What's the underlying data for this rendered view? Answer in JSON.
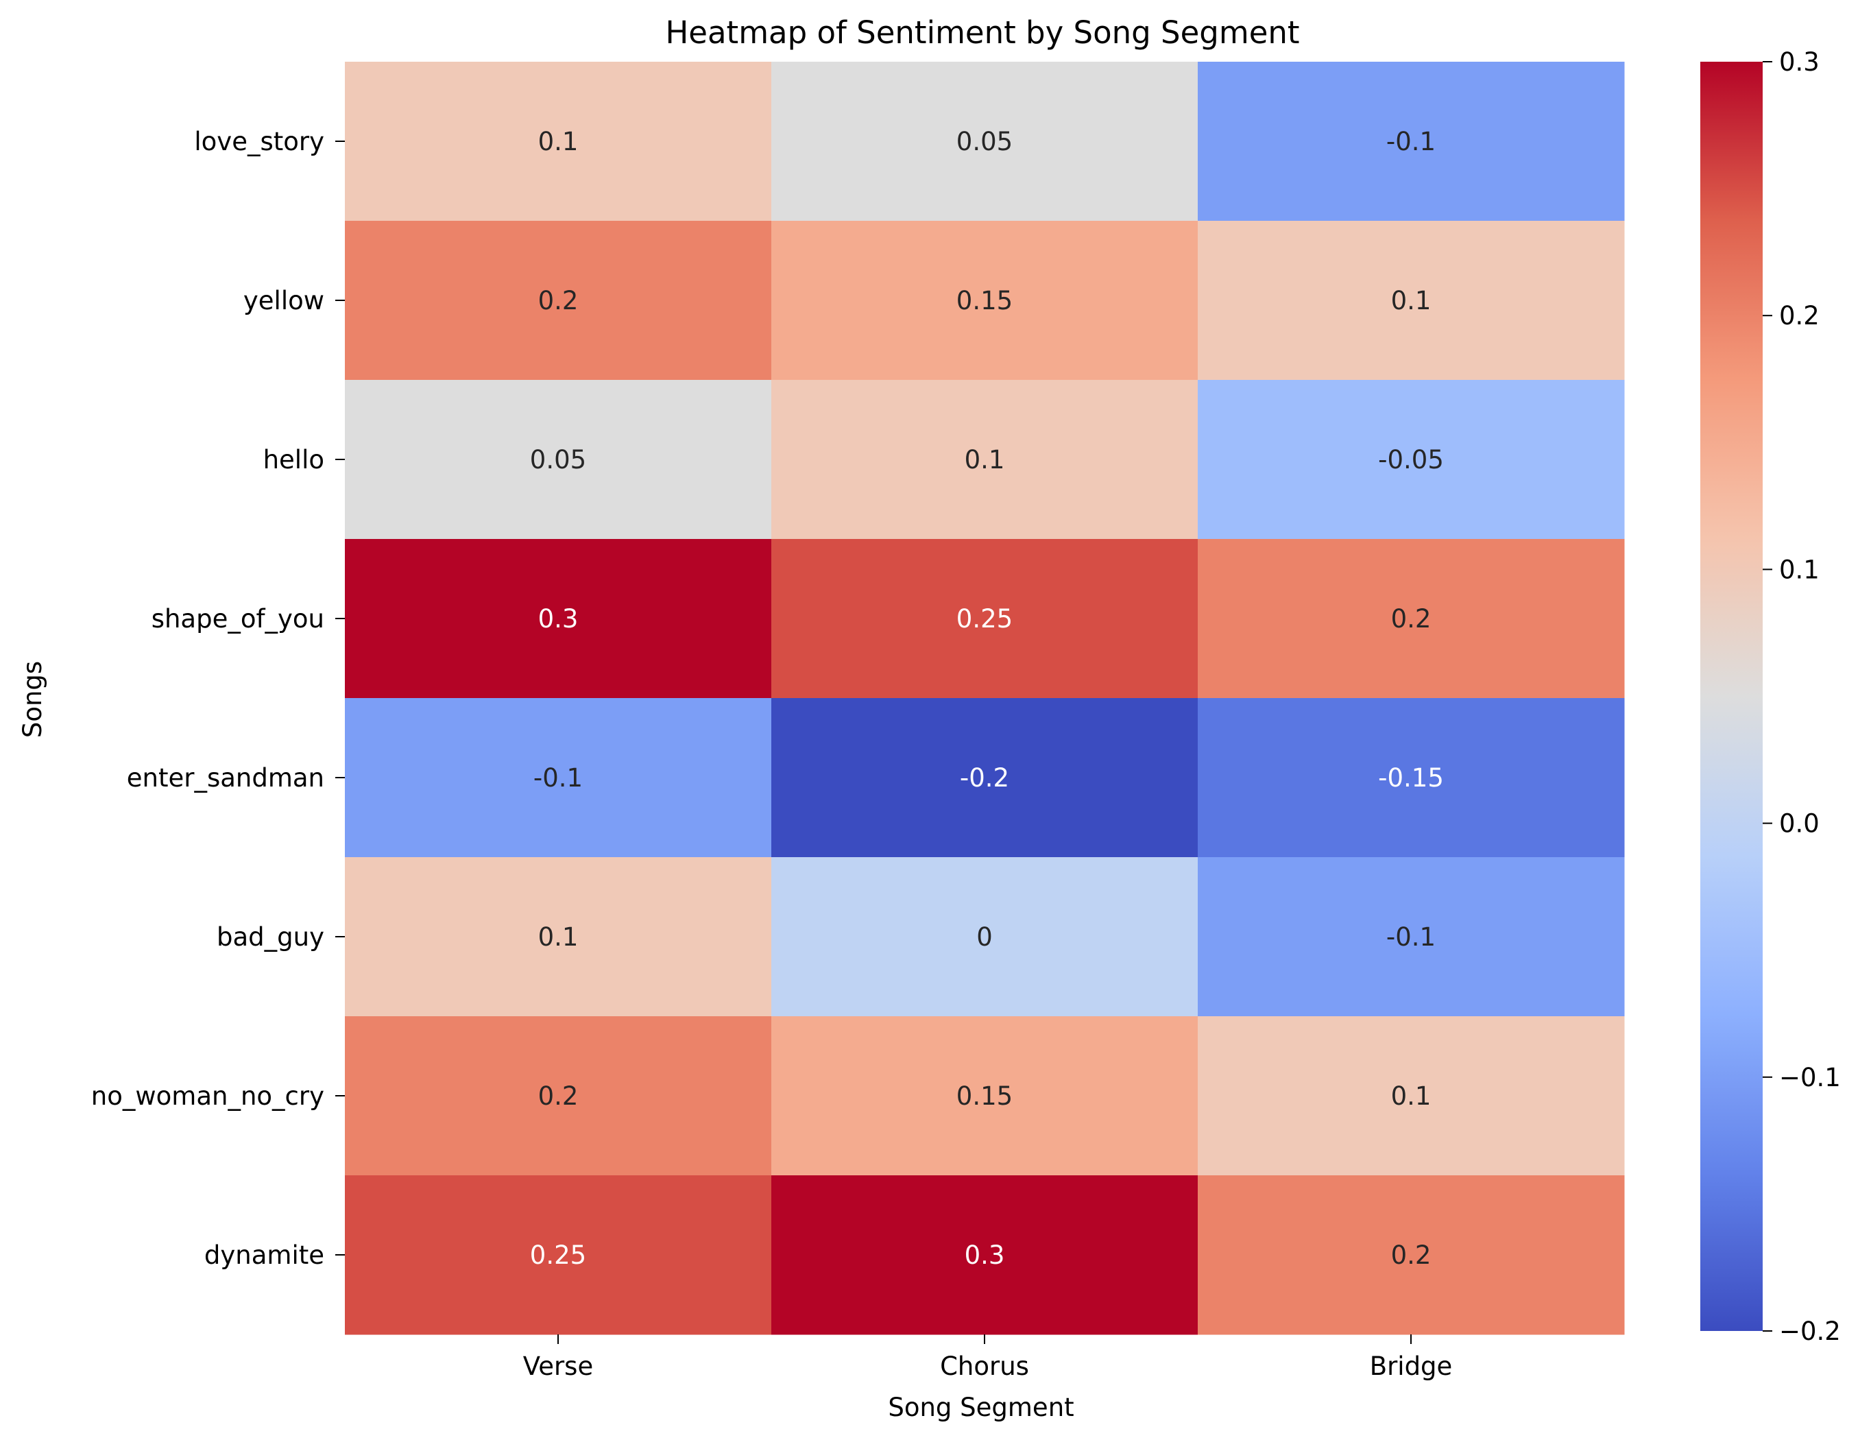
{
  "chart_data": {
    "type": "heatmap",
    "title": "Heatmap of Sentiment by Song Segment",
    "xlabel": "Song Segment",
    "ylabel": "Songs",
    "x_categories": [
      "Verse",
      "Chorus",
      "Bridge"
    ],
    "y_categories": [
      "love_story",
      "yellow",
      "hello",
      "shape_of_you",
      "enter_sandman",
      "bad_guy",
      "no_woman_no_cry",
      "dynamite"
    ],
    "values": [
      [
        0.1,
        0.05,
        -0.1
      ],
      [
        0.2,
        0.15,
        0.1
      ],
      [
        0.05,
        0.1,
        -0.05
      ],
      [
        0.3,
        0.25,
        0.2
      ],
      [
        -0.1,
        -0.2,
        -0.15
      ],
      [
        0.1,
        0,
        -0.1
      ],
      [
        0.2,
        0.15,
        0.1
      ],
      [
        0.25,
        0.3,
        0.2
      ]
    ],
    "value_labels": [
      [
        "0.1",
        "0.05",
        "-0.1"
      ],
      [
        "0.2",
        "0.15",
        "0.1"
      ],
      [
        "0.05",
        "0.1",
        "-0.05"
      ],
      [
        "0.3",
        "0.25",
        "0.2"
      ],
      [
        "-0.1",
        "-0.2",
        "-0.15"
      ],
      [
        "0.1",
        "0",
        "-0.1"
      ],
      [
        "0.2",
        "0.15",
        "0.1"
      ],
      [
        "0.25",
        "0.3",
        "0.2"
      ]
    ],
    "colormap": "coolwarm",
    "colorbar": {
      "vmin": -0.2,
      "vmax": 0.3,
      "ticks": [
        0.3,
        0.2,
        0.1,
        0.0,
        -0.1,
        -0.2
      ],
      "tick_labels": [
        "0.3",
        "0.2",
        "0.1",
        "0.0",
        "−0.1",
        "−0.2"
      ]
    },
    "legend": "colorbar-right"
  }
}
